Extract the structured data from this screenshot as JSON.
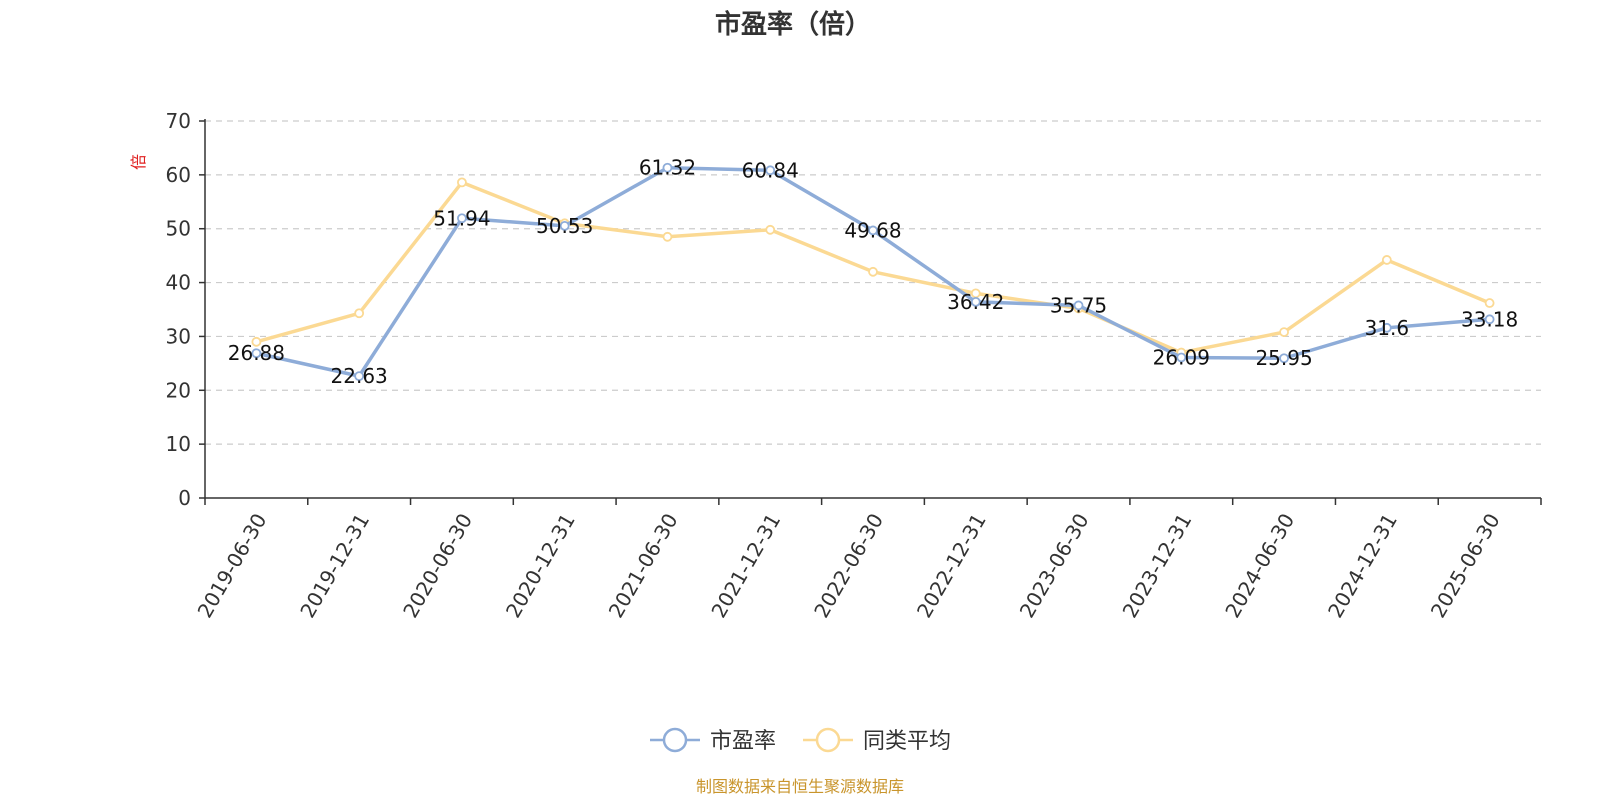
{
  "chart_data": {
    "type": "line",
    "title": "市盈率（倍）",
    "ylabel": "倍",
    "xlabel": "",
    "ylim": [
      0,
      70
    ],
    "yticks": [
      0,
      10,
      20,
      30,
      40,
      50,
      60,
      70
    ],
    "grid": true,
    "legend_position": "bottom",
    "categories": [
      "2019-06-30",
      "2019-12-31",
      "2020-06-30",
      "2020-12-31",
      "2021-06-30",
      "2021-12-31",
      "2022-06-30",
      "2022-12-31",
      "2023-06-30",
      "2023-12-31",
      "2024-06-30",
      "2024-12-31",
      "2025-06-30"
    ],
    "series": [
      {
        "name": "市盈率",
        "color": "#8eacd8",
        "values": [
          26.88,
          22.63,
          51.94,
          50.53,
          61.32,
          60.84,
          49.68,
          36.42,
          35.75,
          26.09,
          25.95,
          31.6,
          33.18
        ],
        "labels": [
          "26.88",
          "22.63",
          "51.94",
          "50.53",
          "61.32",
          "60.84",
          "49.68",
          "36.42",
          "35.75",
          "26.09",
          "25.95",
          "31.6",
          "33.18"
        ]
      },
      {
        "name": "同类平均",
        "color": "#fbd993",
        "values": [
          29.0,
          34.3,
          58.6,
          51.0,
          48.5,
          49.8,
          42.0,
          38.0,
          35.2,
          27.0,
          30.8,
          44.2,
          36.2
        ]
      }
    ],
    "source": "制图数据来自恒生聚源数据库"
  }
}
